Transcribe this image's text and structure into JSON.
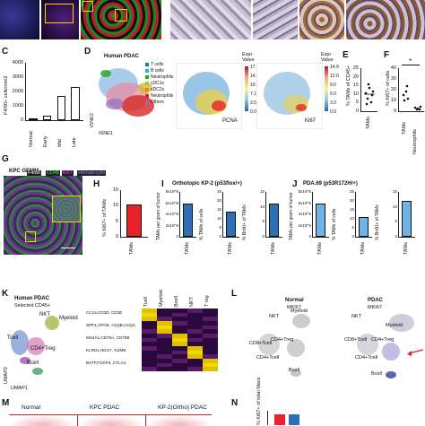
{
  "panels": {
    "C": {
      "letter": "C",
      "ylabel": "F4/80+ cells/mm2",
      "yticks": [
        "4000",
        "3000",
        "2000",
        "1000",
        "0"
      ],
      "categories": [
        "Normal",
        "Early",
        "Mid",
        "Late"
      ]
    },
    "D": {
      "letter": "D",
      "title": "Human PDAC",
      "xlabel": "tSNE1",
      "ylabel": "tSNE2",
      "legend": [
        "T cells",
        "B cells",
        "Neutrophils",
        "cDC1s",
        "cDC2s",
        "Neutrophils",
        "Others"
      ],
      "legend_colors": [
        "#1f77b4",
        "#17becf",
        "#2ca02c",
        "#bcbd22",
        "#ff7f0e",
        "#d62728",
        "#9467bd"
      ],
      "maps": [
        {
          "gene": "PCNA",
          "legend_title": "Expr\nValue",
          "ticks": [
            "17.7",
            "14.2",
            "10.6",
            "7.1",
            "3.5",
            "0.0"
          ]
        },
        {
          "gene": "Ki67",
          "legend_title": "Expr\nValue",
          "ticks": [
            "14.9",
            "12.0",
            "9.0",
            "6.0",
            "3.0",
            "0.0"
          ]
        }
      ]
    },
    "E": {
      "letter": "E",
      "ylabel": "% TAMs of CD45+",
      "yticks": [
        "25",
        "20",
        "15",
        "10",
        "5",
        "0"
      ],
      "xlabel": "TAMs"
    },
    "F": {
      "letter": "F",
      "ylabel": "% Ki67+ of cells",
      "yticks": [
        "40",
        "30",
        "20",
        "10",
        "0"
      ],
      "categories": [
        "TAMs",
        "Neutrophils"
      ],
      "sig": "*"
    },
    "G": {
      "letter": "G",
      "title": "KPC GEMM",
      "stains": [
        "F4/80",
        "CD45",
        "Ki67",
        "Hematoxylin"
      ],
      "stain_colors": [
        "#ffffff",
        "#3cff3c",
        "#ff3cff",
        "#8a8aff"
      ]
    },
    "H": {
      "letter": "H",
      "ylabel": "% Ki67+ of TAMs",
      "yticks": [
        "15",
        "10",
        "5",
        "0"
      ],
      "xlabel": "TAMs"
    },
    "I": {
      "letter": "I",
      "title": "Orthotopic KP-2 (p53flox/+)",
      "sub": [
        {
          "ylabel": "TAMs per gram of tumor",
          "yticks": [
            "8x10^6",
            "6x10^6",
            "4x10^6",
            "2x10^6",
            "0"
          ],
          "xlabel": "TAMs"
        },
        {
          "ylabel": "% TAMs of cells",
          "yticks": [
            "25",
            "20",
            "15",
            "10",
            "5",
            "0"
          ],
          "xlabel": "TAMs"
        },
        {
          "ylabel": "% BrdU+ of TAMs",
          "yticks": [
            "15",
            "10",
            "5",
            "0"
          ],
          "xlabel": "TAMs"
        }
      ]
    },
    "J": {
      "letter": "J",
      "title": "PDA.69 (p53R172H/+)",
      "sub": [
        {
          "ylabel": "TAMs per gram of tumor",
          "yticks": [
            "8x10^6",
            "6x10^6",
            "4x10^6",
            "2x10^6",
            "0"
          ],
          "xlabel": "TAMs"
        },
        {
          "ylabel": "% TAMs of cells",
          "yticks": [
            "25",
            "20",
            "15",
            "10",
            "5",
            "0"
          ],
          "xlabel": "TAMs"
        },
        {
          "ylabel": "% BrdU+ of TAMs",
          "yticks": [
            "15",
            "10",
            "5",
            "0"
          ],
          "xlabel": "TAMs"
        }
      ]
    },
    "K": {
      "letter": "K",
      "title": "Human PDAC",
      "subtitle": "Selected CD45+",
      "clusters": [
        "NKT",
        "Myeloid",
        "Tcell",
        "CD4+Treg",
        "Bcell"
      ],
      "xlabel": "UMAP1",
      "ylabel": "UMAP2",
      "heat_cols": [
        "Tcell",
        "Myeloid",
        "Bcell",
        "NKT",
        "T reg"
      ],
      "heat_rows": [
        "CCL5,CD3D, CD3E",
        "SPP1,APOE, C1QB,C1QC",
        "MS4A1,CD79A, CD79B",
        "KLRD1,NKG7, GZMB",
        "BATF,FOXP3, CTLA4"
      ]
    },
    "L": {
      "letter": "L",
      "left": {
        "title": "Normal",
        "subtitle": "MKI67"
      },
      "right": {
        "title": "PDAC",
        "subtitle": "MKI67"
      },
      "clusters": [
        "NKT",
        "Myeloid",
        "CD8+Tcell",
        "CD4+Treg",
        "CD4+Tcell",
        "Bcell"
      ]
    },
    "M": {
      "letter": "M",
      "titles": [
        "Normal",
        "KPC PDAC",
        "KP-2(Ortho) PDAC"
      ]
    },
    "N": {
      "letter": "N",
      "ylabel": "% Ki67+ of total Macs"
    }
  },
  "chart_data": [
    {
      "type": "bar",
      "categories": [
        "Normal",
        "Early",
        "Mid",
        "Late"
      ],
      "values": [
        50,
        300,
        1700,
        2300
      ],
      "ylim": [
        0,
        4000
      ],
      "color": "#ffffff"
    },
    {
      "type": "bar",
      "categories": [
        "TAMs"
      ],
      "values": [
        10
      ],
      "ylim": [
        0,
        25
      ]
    },
    {
      "type": "bar",
      "categories": [
        "TAMs",
        "Neutrophils"
      ],
      "values": [
        13,
        2
      ],
      "ylim": [
        0,
        40
      ]
    },
    {
      "type": "bar",
      "categories": [
        "TAMs"
      ],
      "values": [
        10.5
      ],
      "ylim": [
        0,
        15
      ],
      "color": "#e8222a"
    },
    {
      "type": "bar",
      "categories": [
        "TAMs"
      ],
      "values": [
        6
      ],
      "ylim": [
        0,
        8
      ],
      "color": "#2f6fb5"
    },
    {
      "type": "bar",
      "categories": [
        "TAMs"
      ],
      "values": [
        14
      ],
      "ylim": [
        0,
        25
      ],
      "color": "#2f6fb5"
    },
    {
      "type": "bar",
      "categories": [
        "TAMs"
      ],
      "values": [
        11
      ],
      "ylim": [
        0,
        15
      ],
      "color": "#2f6fb5"
    },
    {
      "type": "bar",
      "categories": [
        "TAMs"
      ],
      "values": [
        6
      ],
      "ylim": [
        0,
        8
      ],
      "color": "#6fb3e6"
    },
    {
      "type": "bar",
      "categories": [
        "TAMs"
      ],
      "values": [
        11
      ],
      "ylim": [
        0,
        25
      ],
      "color": "#6fb3e6"
    },
    {
      "type": "bar",
      "categories": [
        "TAMs"
      ],
      "values": [
        12
      ],
      "ylim": [
        0,
        15
      ],
      "color": "#6fb3e6"
    }
  ]
}
